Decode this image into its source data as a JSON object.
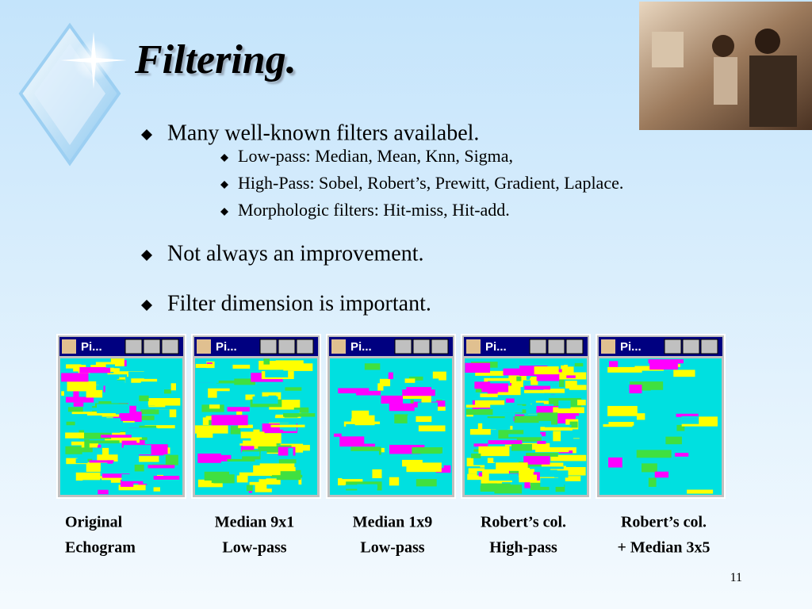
{
  "title": "Filtering.",
  "bullets": [
    {
      "text": "Many well-known filters availabel.",
      "sub": [
        "Low-pass:  Median, Mean, Knn, Sigma,",
        "High-Pass:  Sobel, Robert’s, Prewitt, Gradient, Laplace.",
        "Morphologic filters: Hit-miss, Hit-add."
      ]
    },
    {
      "text": "Not always an improvement."
    },
    {
      "text": "Filter dimension is important."
    }
  ],
  "panels": [
    {
      "window_title": "Pi...",
      "caption": [
        "Original",
        "Echogram"
      ]
    },
    {
      "window_title": "Pi...",
      "caption": [
        "Median 9x1",
        "Low-pass"
      ]
    },
    {
      "window_title": "Pi...",
      "caption": [
        "Median 1x9",
        "Low-pass"
      ]
    },
    {
      "window_title": "Pi...",
      "caption": [
        "Robert’s col.",
        "High-pass"
      ]
    },
    {
      "window_title": "Pi...",
      "caption": [
        "Robert’s col.",
        "+ Median 3x5"
      ]
    }
  ],
  "page_number": "11"
}
